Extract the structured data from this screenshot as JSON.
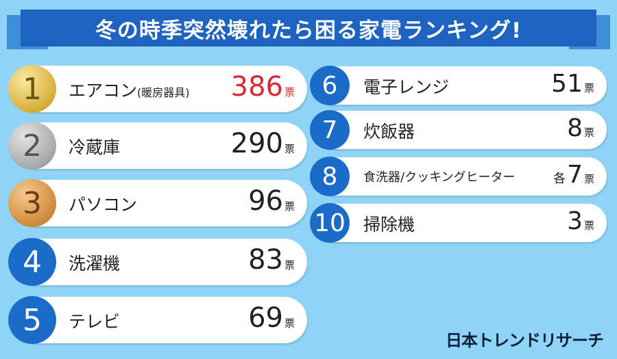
{
  "header": {
    "title": "冬の時季突然壊れたら困る家電ランキング!"
  },
  "rankings": [
    {
      "rank": 1,
      "name": "エアコン",
      "note": "(暖房器具)",
      "votes": 386,
      "unit": "票"
    },
    {
      "rank": 2,
      "name": "冷蔵庫",
      "votes": 290,
      "unit": "票"
    },
    {
      "rank": 3,
      "name": "パソコン",
      "votes": 96,
      "unit": "票"
    },
    {
      "rank": 4,
      "name": "洗濯機",
      "votes": 83,
      "unit": "票"
    },
    {
      "rank": 5,
      "name": "テレビ",
      "votes": 69,
      "unit": "票"
    },
    {
      "rank": 6,
      "name": "電子レンジ",
      "votes": 51,
      "unit": "票"
    },
    {
      "rank": 7,
      "name": "炊飯器",
      "votes": 8,
      "unit": "票"
    },
    {
      "rank": 8,
      "name": "食洗器/クッキングヒーター",
      "prefix": "各",
      "votes": 7,
      "unit": "票"
    },
    {
      "rank": 10,
      "name": "掃除機",
      "votes": 3,
      "unit": "票"
    }
  ],
  "footer": {
    "brand": "日本トレンドリサーチ"
  }
}
